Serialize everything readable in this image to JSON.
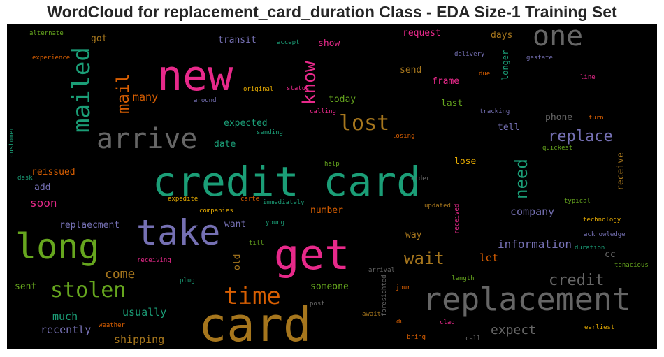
{
  "chart_data": {
    "type": "wordcloud",
    "title": "WordCloud for replacement_card_duration Class - EDA Size-1 Training Set",
    "background": "#000000",
    "words": [
      {
        "text": "credit card",
        "color": "#1b9e77"
      },
      {
        "text": "card",
        "color": "#a6761d"
      },
      {
        "text": "replacement",
        "color": "#666666"
      },
      {
        "text": "new",
        "color": "#e7298a"
      },
      {
        "text": "take",
        "color": "#7570b3"
      },
      {
        "text": "long",
        "color": "#66a61e"
      },
      {
        "text": "get",
        "color": "#e7298a"
      },
      {
        "text": "arrive",
        "color": "#666666"
      },
      {
        "text": "mailed",
        "color": "#1b9e77"
      },
      {
        "text": "one",
        "color": "#666666"
      },
      {
        "text": "know",
        "color": "#e7298a"
      },
      {
        "text": "lost",
        "color": "#a6761d"
      },
      {
        "text": "time",
        "color": "#d95f02"
      },
      {
        "text": "stolen",
        "color": "#66a61e"
      },
      {
        "text": "mail",
        "color": "#d95f02"
      },
      {
        "text": "replace",
        "color": "#7570b3"
      },
      {
        "text": "need",
        "color": "#1b9e77"
      },
      {
        "text": "wait",
        "color": "#a6761d"
      },
      {
        "text": "credit",
        "color": "#666666"
      },
      {
        "text": "expect",
        "color": "#666666"
      },
      {
        "text": "information",
        "color": "#7570b3"
      },
      {
        "text": "come",
        "color": "#a6761d"
      },
      {
        "text": "company",
        "color": "#7570b3"
      },
      {
        "text": "many",
        "color": "#d95f02"
      },
      {
        "text": "soon",
        "color": "#e7298a"
      },
      {
        "text": "usually",
        "color": "#1b9e77"
      },
      {
        "text": "much",
        "color": "#1b9e77"
      },
      {
        "text": "recently",
        "color": "#7570b3"
      },
      {
        "text": "shipping",
        "color": "#a6761d"
      },
      {
        "text": "reissued",
        "color": "#d95f02"
      },
      {
        "text": "replaecment",
        "color": "#7570b3"
      },
      {
        "text": "expected",
        "color": "#1b9e77"
      },
      {
        "text": "today",
        "color": "#66a61e"
      },
      {
        "text": "phone",
        "color": "#666666"
      },
      {
        "text": "tell",
        "color": "#7570b3"
      },
      {
        "text": "last",
        "color": "#66a61e"
      },
      {
        "text": "frame",
        "color": "#e7298a"
      },
      {
        "text": "send",
        "color": "#a6761d"
      },
      {
        "text": "days",
        "color": "#a6761d"
      },
      {
        "text": "request",
        "color": "#e7298a"
      },
      {
        "text": "show",
        "color": "#e7298a"
      },
      {
        "text": "transit",
        "color": "#7570b3"
      },
      {
        "text": "got",
        "color": "#a6761d"
      },
      {
        "text": "date",
        "color": "#1b9e77"
      },
      {
        "text": "lose",
        "color": "#e6ab02"
      },
      {
        "text": "receive",
        "color": "#a6761d"
      },
      {
        "text": "want",
        "color": "#7570b3"
      },
      {
        "text": "number",
        "color": "#d95f02"
      },
      {
        "text": "way",
        "color": "#a6761d"
      },
      {
        "text": "let",
        "color": "#d95f02"
      },
      {
        "text": "cc",
        "color": "#666666"
      },
      {
        "text": "old",
        "color": "#a6761d"
      },
      {
        "text": "someone",
        "color": "#66a61e"
      },
      {
        "text": "add",
        "color": "#7570b3"
      },
      {
        "text": "sent",
        "color": "#66a61e"
      },
      {
        "text": "longer",
        "color": "#1b9e77"
      },
      {
        "text": "delivery",
        "color": "#7570b3"
      },
      {
        "text": "due",
        "color": "#d95f02"
      },
      {
        "text": "gestate",
        "color": "#7570b3"
      },
      {
        "text": "line",
        "color": "#e7298a"
      },
      {
        "text": "original",
        "color": "#e6ab02"
      },
      {
        "text": "status",
        "color": "#e7298a"
      },
      {
        "text": "around",
        "color": "#7570b3"
      },
      {
        "text": "calling",
        "color": "#e7298a"
      },
      {
        "text": "tracking",
        "color": "#7570b3"
      },
      {
        "text": "turn",
        "color": "#d95f02"
      },
      {
        "text": "sending",
        "color": "#1b9e77"
      },
      {
        "text": "losing",
        "color": "#d95f02"
      },
      {
        "text": "quickest",
        "color": "#66a61e"
      },
      {
        "text": "help",
        "color": "#66a61e"
      },
      {
        "text": "order",
        "color": "#666666"
      },
      {
        "text": "carte",
        "color": "#d95f02"
      },
      {
        "text": "immediately",
        "color": "#1b9e77"
      },
      {
        "text": "expedite",
        "color": "#e6ab02"
      },
      {
        "text": "companies",
        "color": "#e6ab02"
      },
      {
        "text": "updated",
        "color": "#a6761d"
      },
      {
        "text": "received",
        "color": "#e7298a"
      },
      {
        "text": "typical",
        "color": "#66a61e"
      },
      {
        "text": "technology",
        "color": "#e6ab02"
      },
      {
        "text": "acknowledge",
        "color": "#7570b3"
      },
      {
        "text": "duration",
        "color": "#1b9e77"
      },
      {
        "text": "young",
        "color": "#1b9e77"
      },
      {
        "text": "till",
        "color": "#66a61e"
      },
      {
        "text": "receiving",
        "color": "#e7298a"
      },
      {
        "text": "plug",
        "color": "#1b9e77"
      },
      {
        "text": "arrival",
        "color": "#666666"
      },
      {
        "text": "foresighted",
        "color": "#666666"
      },
      {
        "text": "jour",
        "color": "#d95f02"
      },
      {
        "text": "length",
        "color": "#66a61e"
      },
      {
        "text": "tenacious",
        "color": "#66a61e"
      },
      {
        "text": "post",
        "color": "#666666"
      },
      {
        "text": "await",
        "color": "#a6761d"
      },
      {
        "text": "du",
        "color": "#d95f02"
      },
      {
        "text": "clad",
        "color": "#e7298a"
      },
      {
        "text": "earliest",
        "color": "#e6ab02"
      },
      {
        "text": "weather",
        "color": "#d95f02"
      },
      {
        "text": "bring",
        "color": "#d95f02"
      },
      {
        "text": "call",
        "color": "#666666"
      },
      {
        "text": "alternate",
        "color": "#66a61e"
      },
      {
        "text": "accept",
        "color": "#1b9e77"
      },
      {
        "text": "experience",
        "color": "#d95f02"
      },
      {
        "text": "customer",
        "color": "#1b9e77"
      },
      {
        "text": "desk",
        "color": "#1b9e77"
      }
    ]
  }
}
